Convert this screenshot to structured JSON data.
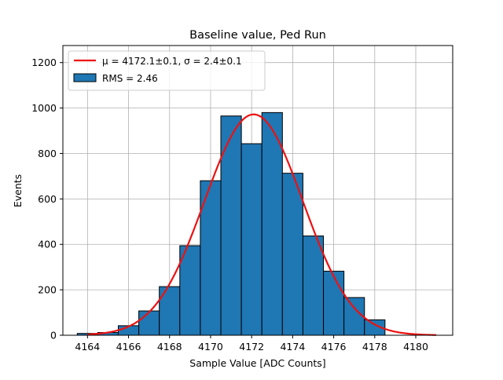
{
  "chart_data": {
    "type": "bar",
    "title": "Baseline value, Ped Run",
    "xlabel": "Sample Value [ADC Counts]",
    "ylabel": "Events",
    "xlim": [
      4162.8,
      4181.8
    ],
    "ylim": [
      0,
      1275
    ],
    "xticks": [
      4164,
      4166,
      4168,
      4170,
      4172,
      4174,
      4176,
      4178,
      4180
    ],
    "yticks": [
      0,
      200,
      400,
      600,
      800,
      1000,
      1200
    ],
    "grid": true,
    "legend": "top-left",
    "bins": {
      "edges": [
        4163.5,
        4164.5,
        4165.5,
        4166.5,
        4167.5,
        4168.5,
        4169.5,
        4170.5,
        4171.5,
        4172.5,
        4173.5,
        4174.5,
        4175.5,
        4176.5,
        4177.5,
        4178.5
      ],
      "counts": [
        8,
        12,
        42,
        107,
        214,
        394,
        680,
        965,
        843,
        980,
        713,
        437,
        282,
        166,
        68,
        25
      ],
      "color": "#1f77b4",
      "edgecolor": "#000000"
    },
    "fit": {
      "mu": 4172.1,
      "sigma": 2.4,
      "amplitude": 972,
      "x_range": [
        4164.0,
        4181.0
      ],
      "color": "#ee1111"
    },
    "series": [
      {
        "name": "$\\mu = 4172.1 \\pm 0.1$, $\\sigma = 2.4 \\pm 0.1$",
        "display_name": "μ = 4172.1±0.1, σ = 2.4±0.1",
        "kind": "line",
        "color": "#ee1111"
      },
      {
        "name": "RMS = 2.46",
        "display_name": "RMS = 2.46",
        "kind": "bar",
        "color": "#1f77b4"
      }
    ]
  }
}
